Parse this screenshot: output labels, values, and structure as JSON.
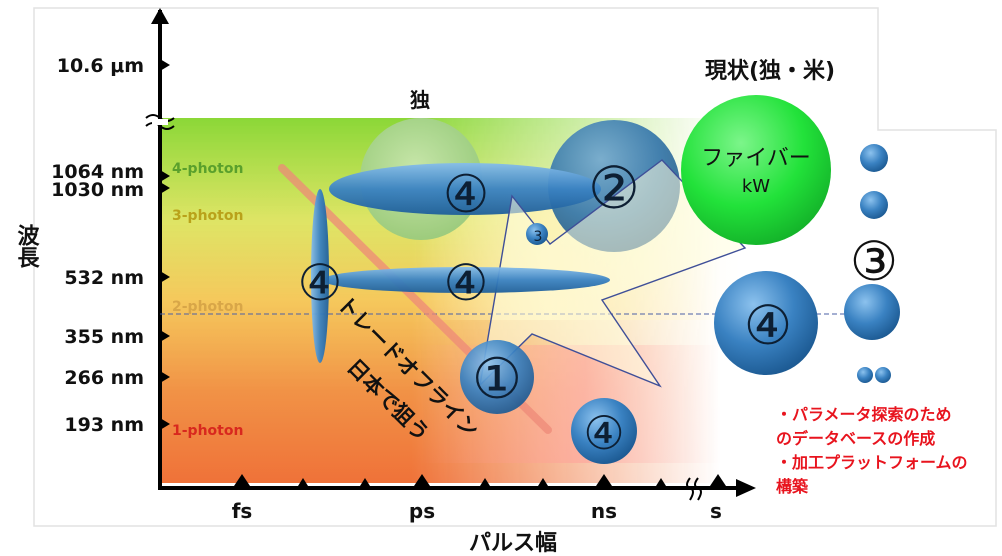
{
  "chart_data": {
    "type": "scatter",
    "title": "",
    "xlabel": "パルス幅",
    "ylabel": "波長",
    "x_ticks": [
      "fs",
      "ps",
      "ns",
      "s"
    ],
    "y_ticks": [
      "10.6 μm",
      "1064 nm",
      "1030 nm",
      "532 nm",
      "355 nm",
      "266 nm",
      "193 nm"
    ],
    "photon_regions": [
      {
        "label": "4-photon",
        "color": "#5aa02c"
      },
      {
        "label": "3-photon",
        "color": "#b9a21a"
      },
      {
        "label": "2-photon",
        "color": "#d8a648"
      },
      {
        "label": "1-photon",
        "color": "#d8281e"
      }
    ],
    "tradeoff_label": "トレードオフライン",
    "japan_label": "日本で狙う",
    "bubbles": [
      {
        "id": "germany",
        "label": "",
        "group": "独",
        "color": "#9fcf7e"
      },
      {
        "id": "c2",
        "label": "②",
        "color": "#3f88c5"
      },
      {
        "id": "fiber",
        "label": "ファイバー",
        "sublabel": "kW",
        "color": "#22e23a"
      },
      {
        "id": "e1064",
        "label": "④",
        "color": "#3f88c5"
      },
      {
        "id": "e532",
        "label": "④",
        "color": "#3f88c5"
      },
      {
        "id": "v-ellipse",
        "label": "④",
        "color": "#3f88c5"
      },
      {
        "id": "small3",
        "label": "3",
        "color": "#3f88c5"
      },
      {
        "id": "c1",
        "label": "①",
        "color": "#3f88c5"
      },
      {
        "id": "ns4",
        "label": "④",
        "color": "#3f88c5"
      },
      {
        "id": "right4",
        "label": "④",
        "color": "#3f88c5"
      },
      {
        "id": "col3",
        "label": "③",
        "color": "#3f88c5"
      }
    ],
    "annotations": {
      "germany": "独",
      "current": "現状(独・米)",
      "notes": [
        "・パラメータ探索のため",
        "のデータベースの作成",
        "・加工プラットフォームの",
        "構築"
      ]
    }
  }
}
